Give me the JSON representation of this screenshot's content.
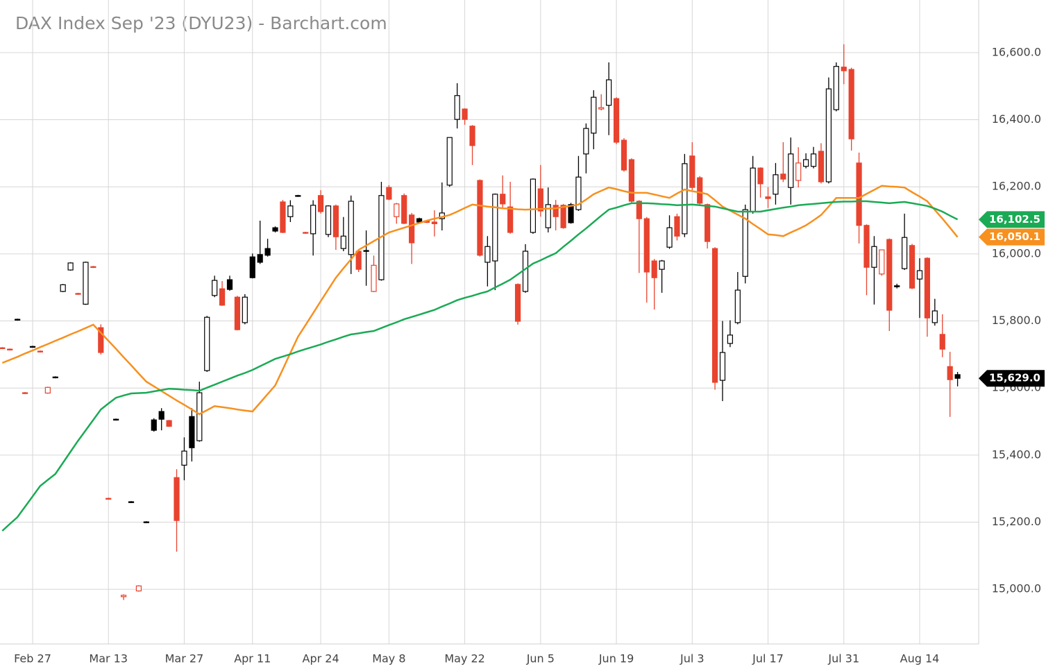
{
  "chart_data": {
    "type": "candlestick",
    "title": "DAX Index Sep '23 (DYU23) - Barchart.com",
    "categories": [
      null,
      null,
      null,
      null,
      "Feb 27",
      null,
      null,
      null,
      null,
      null,
      null,
      null,
      null,
      null,
      "Mar 13",
      null,
      null,
      null,
      null,
      null,
      null,
      null,
      null,
      null,
      "Mar 27",
      null,
      null,
      null,
      null,
      null,
      null,
      null,
      null,
      "Apr 11",
      null,
      null,
      null,
      null,
      null,
      null,
      null,
      null,
      "Apr 24",
      null,
      null,
      null,
      null,
      null,
      null,
      null,
      null,
      "May 8",
      null,
      null,
      null,
      null,
      null,
      null,
      null,
      null,
      null,
      "May 22",
      null,
      null,
      null,
      null,
      null,
      null,
      null,
      null,
      null,
      "Jun 5",
      null,
      null,
      null,
      null,
      null,
      null,
      null,
      null,
      null,
      "Jun 19",
      null,
      null,
      null,
      null,
      null,
      null,
      null,
      null,
      null,
      "Jul 3",
      null,
      null,
      null,
      null,
      null,
      null,
      null,
      null,
      null,
      "Jul 17",
      null,
      null,
      null,
      null,
      null,
      null,
      null,
      null,
      null,
      "Jul 31",
      null,
      null,
      null,
      null,
      null,
      null,
      null,
      null,
      null,
      "Aug 14",
      null,
      null,
      null,
      null,
      null
    ],
    "ohlc": [
      [
        15720,
        15722,
        15716,
        15718
      ],
      [
        15716,
        15718,
        15712,
        15714
      ],
      [
        15803,
        15807,
        15801,
        15805
      ],
      [
        15586,
        15588,
        15582,
        15584
      ],
      [
        15722,
        15726,
        15720,
        15724
      ],
      [
        15710,
        15712,
        15706,
        15708
      ],
      [
        15585,
        15604,
        15583,
        15602
      ],
      [
        15631,
        15635,
        15629,
        15633
      ],
      [
        15888,
        15910,
        15886,
        15908
      ],
      [
        15952,
        15975,
        15950,
        15973
      ],
      [
        15882,
        15884,
        15878,
        15880
      ],
      [
        15850,
        15977,
        15848,
        15975
      ],
      [
        15962,
        15964,
        15958,
        15960
      ],
      [
        15780,
        15790,
        15700,
        15706
      ],
      [
        15271,
        15273,
        15267,
        15269
      ],
      [
        15505,
        15509,
        15503,
        15507
      ],
      [
        14978,
        14985,
        14968,
        14982
      ],
      [
        15259,
        15263,
        15257,
        15261
      ],
      [
        14995,
        15012,
        14993,
        15010
      ],
      [
        15201,
        15203,
        15197,
        15199
      ],
      [
        15505,
        15510,
        15470,
        15474
      ],
      [
        15530,
        15540,
        15474,
        15507
      ],
      [
        15503,
        15505,
        15484,
        15486
      ],
      [
        15333,
        15358,
        15112,
        15205
      ],
      [
        15370,
        15453,
        15325,
        15412
      ],
      [
        15515,
        15540,
        15381,
        15422
      ],
      [
        15443,
        15619,
        15440,
        15586
      ],
      [
        15652,
        15815,
        15648,
        15811
      ],
      [
        15876,
        15935,
        15871,
        15921
      ],
      [
        15896,
        15919,
        15845,
        15847
      ],
      [
        15923,
        15935,
        15890,
        15894
      ],
      [
        15871,
        15875,
        15772,
        15774
      ],
      [
        15795,
        15880,
        15790,
        15871
      ],
      [
        15991,
        16001,
        15927,
        15929
      ],
      [
        15998,
        16099,
        15970,
        15975
      ],
      [
        16016,
        16045,
        15992,
        15996
      ],
      [
        16078,
        16082,
        16064,
        16068
      ],
      [
        16155,
        16161,
        16062,
        16064
      ],
      [
        16111,
        16160,
        16095,
        16143
      ],
      [
        16172,
        16176,
        16170,
        16174
      ],
      [
        16064,
        16066,
        16060,
        16062
      ],
      [
        16060,
        16160,
        15995,
        16145
      ],
      [
        16174,
        16190,
        16120,
        16126
      ],
      [
        16058,
        16145,
        16050,
        16143
      ],
      [
        16143,
        16147,
        16012,
        16051
      ],
      [
        16016,
        16110,
        16008,
        16053
      ],
      [
        15998,
        16174,
        15940,
        16157
      ],
      [
        16008,
        16012,
        15946,
        15954
      ],
      [
        16010,
        16070,
        15905,
        16008
      ],
      [
        15888,
        15995,
        15886,
        15966
      ],
      [
        15923,
        16215,
        15920,
        16174
      ],
      [
        16198,
        16205,
        16160,
        16163
      ],
      [
        16111,
        16152,
        16090,
        16149
      ],
      [
        16174,
        16180,
        16089,
        16091
      ],
      [
        16116,
        16122,
        15970,
        16033
      ],
      [
        16105,
        16108,
        16092,
        16095
      ],
      [
        16098,
        16100,
        16092,
        16094
      ],
      [
        16095,
        16130,
        16052,
        16090
      ],
      [
        16105,
        16213,
        16070,
        16122
      ],
      [
        16205,
        16347,
        16200,
        16347
      ],
      [
        16401,
        16509,
        16374,
        16472
      ],
      [
        16432,
        16434,
        16385,
        16401
      ],
      [
        16381,
        16384,
        16265,
        16323
      ],
      [
        16219,
        16222,
        15992,
        15996
      ],
      [
        15975,
        16053,
        15903,
        16022
      ],
      [
        15979,
        16180,
        15892,
        16178
      ],
      [
        16178,
        16234,
        16137,
        16149
      ],
      [
        16140,
        16215,
        16060,
        16064
      ],
      [
        15909,
        15912,
        15789,
        15799
      ],
      [
        15888,
        16029,
        15884,
        16008
      ],
      [
        16064,
        16225,
        16060,
        16223
      ],
      [
        16194,
        16265,
        16111,
        16128
      ],
      [
        16078,
        16198,
        16064,
        16147
      ],
      [
        16145,
        16161,
        16070,
        16111
      ],
      [
        16145,
        16149,
        16075,
        16078
      ],
      [
        16147,
        16152,
        16090,
        16093
      ],
      [
        16132,
        16292,
        16128,
        16229
      ],
      [
        16298,
        16389,
        16240,
        16374
      ],
      [
        16360,
        16488,
        16312,
        16467
      ],
      [
        16432,
        16476,
        16428,
        16436
      ],
      [
        16443,
        16571,
        16354,
        16519
      ],
      [
        16463,
        16467,
        16327,
        16333
      ],
      [
        16339,
        16345,
        16245,
        16250
      ],
      [
        16281,
        16285,
        16150,
        16157
      ],
      [
        16157,
        16160,
        15943,
        16105
      ],
      [
        16105,
        16110,
        15855,
        15946
      ],
      [
        15979,
        15985,
        15834,
        15929
      ],
      [
        15954,
        15982,
        15884,
        15979
      ],
      [
        16020,
        16115,
        16015,
        16078
      ],
      [
        16111,
        16120,
        16040,
        16053
      ],
      [
        16060,
        16298,
        16050,
        16269
      ],
      [
        16292,
        16333,
        16190,
        16198
      ],
      [
        16227,
        16232,
        16145,
        16151
      ],
      [
        16147,
        16150,
        16016,
        16037
      ],
      [
        16016,
        16020,
        15595,
        15617
      ],
      [
        15623,
        15800,
        15561,
        15706
      ],
      [
        15733,
        15802,
        15722,
        15758
      ],
      [
        15795,
        15946,
        15790,
        15892
      ],
      [
        15933,
        16147,
        15912,
        16132
      ],
      [
        16126,
        16292,
        16120,
        16256
      ],
      [
        16256,
        16258,
        16168,
        16209
      ],
      [
        16170,
        16199,
        16137,
        16165
      ],
      [
        16178,
        16271,
        16147,
        16236
      ],
      [
        16238,
        16333,
        16214,
        16223
      ],
      [
        16198,
        16347,
        16147,
        16298
      ],
      [
        16219,
        16318,
        16198,
        16271
      ],
      [
        16261,
        16300,
        16255,
        16281
      ],
      [
        16261,
        16319,
        16255,
        16298
      ],
      [
        16306,
        16330,
        16210,
        16215
      ],
      [
        16215,
        16526,
        16210,
        16492
      ],
      [
        16430,
        16571,
        16425,
        16559
      ],
      [
        16557,
        16625,
        16506,
        16546
      ],
      [
        16550,
        16555,
        16308,
        16343
      ],
      [
        16271,
        16302,
        16031,
        16085
      ],
      [
        16085,
        16088,
        15877,
        15960
      ],
      [
        15960,
        16053,
        15849,
        16022
      ],
      [
        15940,
        16012,
        15935,
        16012
      ],
      [
        16043,
        16046,
        15770,
        15832
      ],
      [
        15905,
        15911,
        15897,
        15902
      ],
      [
        15956,
        16120,
        15952,
        16049
      ],
      [
        16025,
        16030,
        15895,
        15898
      ],
      [
        15925,
        15987,
        15809,
        15950
      ],
      [
        15987,
        15990,
        15753,
        15809
      ],
      [
        15795,
        15866,
        15786,
        15830
      ],
      [
        15760,
        15820,
        15692,
        15716
      ],
      [
        15664,
        15708,
        15514,
        15625
      ],
      [
        15640,
        15648,
        15605,
        15629.0
      ]
    ],
    "up_color": "#000000",
    "down_color": "#e8432e",
    "close_label": "15,629.0",
    "series": [
      {
        "color": "#f7901e",
        "last_label": "16,050.1",
        "values": [
          15675,
          15684,
          15693,
          15703,
          15712,
          15722,
          15731,
          15741,
          15750,
          15760,
          15769,
          15779,
          15789,
          15765,
          15741,
          15717,
          15692,
          15668,
          15643,
          15619,
          15605,
          15591,
          15577,
          15563,
          15550,
          15536,
          15522,
          15534,
          15546,
          15543,
          15540,
          15536,
          15533,
          15530,
          15556,
          15582,
          15608,
          15656,
          15705,
          15753,
          15788,
          15823,
          15859,
          15894,
          15929,
          15957,
          15984,
          16012,
          16025,
          16038,
          16051,
          16064,
          16071,
          16078,
          16085,
          16092,
          16099,
          16105,
          16110,
          16116,
          16126,
          16137,
          16147,
          16144,
          16141,
          16139,
          16136,
          16135,
          16133,
          16132,
          16133,
          16134,
          16135,
          16136,
          16140,
          16143,
          16147,
          16162,
          16178,
          16188,
          16198,
          16193,
          16187,
          16182,
          16182,
          16182,
          16177,
          16172,
          16167,
          16180,
          16192,
          16187,
          16183,
          16178,
          16160,
          16141,
          16129,
          16117,
          16105,
          16089,
          16074,
          16058,
          16056,
          16053,
          16064,
          16074,
          16085,
          16100,
          16116,
          16141,
          16167,
          16167,
          16167,
          16167,
          16179,
          16191,
          16203,
          16201,
          16200,
          16198,
          16184,
          16171,
          16157,
          16131,
          16105,
          16078,
          16050.1
        ]
      },
      {
        "color": "#1aaa55",
        "last_label": "16,102.5",
        "values": [
          15174,
          15195,
          15215,
          15246,
          15277,
          15308,
          15326,
          15344,
          15377,
          15410,
          15443,
          15474,
          15505,
          15536,
          15554,
          15571,
          15578,
          15584,
          15585,
          15586,
          15590,
          15594,
          15598,
          15597,
          15595,
          15594,
          15592,
          15601,
          15610,
          15619,
          15628,
          15637,
          15645,
          15654,
          15665,
          15676,
          15687,
          15694,
          15701,
          15709,
          15716,
          15723,
          15730,
          15738,
          15745,
          15753,
          15760,
          15763,
          15767,
          15770,
          15779,
          15788,
          15796,
          15805,
          15812,
          15819,
          15826,
          15833,
          15843,
          15852,
          15862,
          15869,
          15875,
          15882,
          15888,
          15900,
          15911,
          15923,
          15939,
          15955,
          15971,
          15981,
          15992,
          16002,
          16021,
          16039,
          16058,
          16076,
          16095,
          16114,
          16132,
          16138,
          16145,
          16151,
          16151,
          16151,
          16150,
          16148,
          16147,
          16145,
          16146,
          16147,
          16145,
          16143,
          16141,
          16136,
          16131,
          16126,
          16126,
          16126,
          16126,
          16130,
          16134,
          16138,
          16141,
          16145,
          16147,
          16149,
          16151,
          16153,
          16155,
          16156,
          16156,
          16157,
          16157,
          16155,
          16153,
          16151,
          16153,
          16155,
          16151,
          16147,
          16143,
          16135,
          16126,
          16114,
          16102.5
        ]
      }
    ],
    "ylim": [
      14837,
      16757
    ],
    "yticks": [
      {
        "value": 15000,
        "label": "15,000.0"
      },
      {
        "value": 15200,
        "label": "15,200.0"
      },
      {
        "value": 15400,
        "label": "15,400.0"
      },
      {
        "value": 15600,
        "label": "15,600.0"
      },
      {
        "value": 15800,
        "label": "15,800.0"
      },
      {
        "value": 16000,
        "label": "16,000.0"
      },
      {
        "value": 16200,
        "label": "16,200.0"
      },
      {
        "value": 16400,
        "label": "16,400.0"
      },
      {
        "value": 16600,
        "label": "16,600.0"
      }
    ],
    "grid": true
  }
}
